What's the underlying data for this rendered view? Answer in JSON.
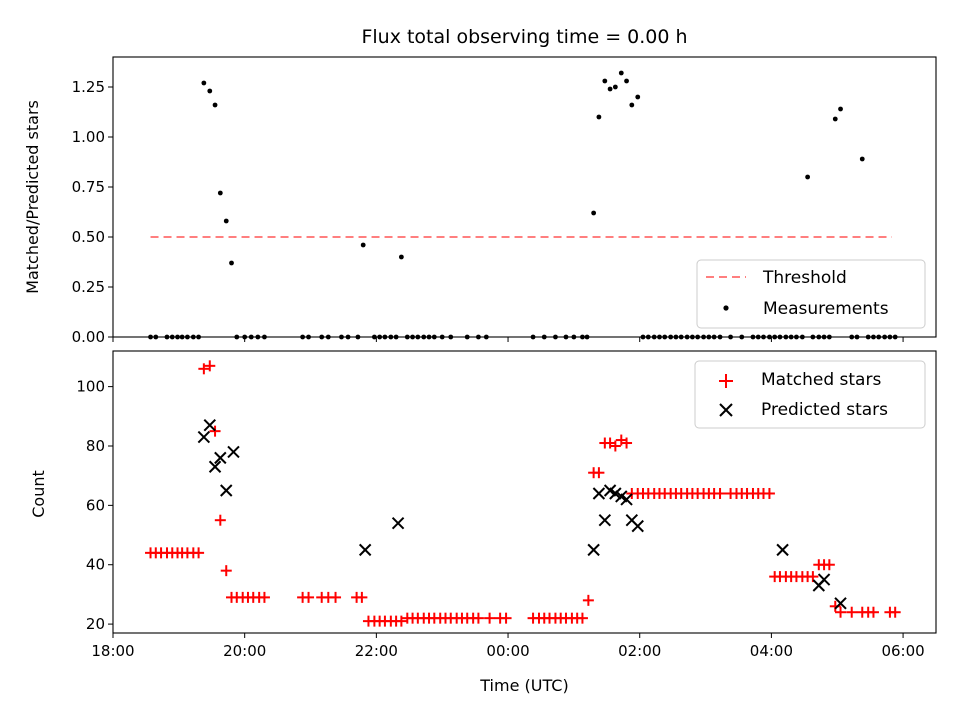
{
  "chart_data": [
    {
      "type": "scatter",
      "title": "Flux total observing time = 0.00 h",
      "ylabel": "Matched/Predicted stars",
      "xlabel": "",
      "x_unit": "hours since 18:00 UTC",
      "xlim": [
        0,
        12.5
      ],
      "ylim": [
        0,
        1.4
      ],
      "yticks": [
        0.0,
        0.25,
        0.5,
        0.75,
        1.0,
        1.25
      ],
      "ytick_labels": [
        "0.00",
        "0.25",
        "0.50",
        "0.75",
        "1.00",
        "1.25"
      ],
      "grid": false,
      "legend_placement": "lower-right",
      "series": [
        {
          "name": "Threshold",
          "style": "dashed-line",
          "color": "#ff7f7f",
          "x": [
            0.57,
            11.83
          ],
          "y": [
            0.5,
            0.5
          ]
        },
        {
          "name": "Measurements",
          "style": "dot",
          "color": "#000000",
          "x": [
            0.57,
            0.65,
            0.82,
            0.9,
            0.98,
            1.05,
            1.13,
            1.22,
            1.3,
            1.38,
            1.47,
            1.55,
            1.63,
            1.72,
            1.8,
            1.88,
            2.0,
            2.1,
            2.2,
            2.3,
            2.88,
            2.97,
            3.17,
            3.27,
            3.47,
            3.57,
            3.72,
            3.8,
            3.97,
            4.05,
            4.13,
            4.22,
            4.3,
            4.38,
            4.47,
            4.55,
            4.63,
            4.72,
            4.8,
            4.88,
            5.0,
            5.13,
            5.38,
            5.55,
            5.67,
            6.38,
            6.55,
            6.72,
            6.88,
            7.0,
            7.13,
            7.2,
            7.3,
            7.38,
            7.47,
            7.55,
            7.63,
            7.72,
            7.8,
            7.88,
            7.97,
            8.05,
            8.13,
            8.22,
            8.3,
            8.38,
            8.47,
            8.55,
            8.63,
            8.72,
            8.8,
            8.88,
            8.97,
            9.05,
            9.13,
            9.22,
            9.38,
            9.55,
            9.72,
            9.8,
            9.88,
            9.97,
            10.05,
            10.13,
            10.22,
            10.3,
            10.38,
            10.47,
            10.55,
            10.63,
            10.72,
            10.8,
            10.88,
            10.97,
            11.05,
            11.22,
            11.3,
            11.38,
            11.47,
            11.55,
            11.63,
            11.72,
            11.8,
            11.88
          ],
          "y": [
            0.0,
            0.0,
            0.0,
            0.0,
            0.0,
            0.0,
            0.0,
            0.0,
            0.0,
            1.27,
            1.23,
            1.16,
            0.72,
            0.58,
            0.37,
            0.0,
            0.0,
            0.0,
            0.0,
            0.0,
            0.0,
            0.0,
            0.0,
            0.0,
            0.0,
            0.0,
            0.0,
            0.46,
            0.0,
            0.0,
            0.0,
            0.0,
            0.0,
            0.4,
            0.0,
            0.0,
            0.0,
            0.0,
            0.0,
            0.0,
            0.0,
            0.0,
            0.0,
            0.0,
            0.0,
            0.0,
            0.0,
            0.0,
            0.0,
            0.0,
            0.0,
            0.0,
            0.62,
            1.1,
            1.28,
            1.24,
            1.25,
            1.32,
            1.28,
            1.16,
            1.2,
            0.0,
            0.0,
            0.0,
            0.0,
            0.0,
            0.0,
            0.0,
            0.0,
            0.0,
            0.0,
            0.0,
            0.0,
            0.0,
            0.0,
            0.0,
            0.0,
            0.0,
            0.0,
            0.0,
            0.0,
            0.0,
            0.0,
            0.0,
            0.0,
            0.0,
            0.0,
            0.0,
            0.8,
            0.0,
            0.0,
            0.0,
            0.0,
            1.09,
            1.14,
            0.0,
            0.0,
            0.89,
            0.0,
            0.0,
            0.0,
            0.0,
            0.0,
            0.0
          ]
        }
      ]
    },
    {
      "type": "scatter",
      "title": "",
      "ylabel": "Count",
      "xlabel": "Time (UTC)",
      "x_unit": "hours since 18:00 UTC",
      "xlim": [
        0,
        12.5
      ],
      "ylim": [
        17,
        112
      ],
      "xticks": [
        0,
        2,
        4,
        6,
        8,
        10,
        12
      ],
      "xtick_labels": [
        "18:00",
        "20:00",
        "22:00",
        "00:00",
        "02:00",
        "04:00",
        "06:00"
      ],
      "yticks": [
        20,
        40,
        60,
        80,
        100
      ],
      "ytick_labels": [
        "20",
        "40",
        "60",
        "80",
        "100"
      ],
      "grid": false,
      "legend_placement": "upper-right",
      "series": [
        {
          "name": "Matched stars",
          "marker": "plus",
          "color": "#ff0000",
          "x": [
            0.57,
            0.65,
            0.73,
            0.82,
            0.9,
            0.98,
            1.05,
            1.13,
            1.22,
            1.3,
            1.38,
            1.47,
            1.55,
            1.63,
            1.72,
            1.8,
            1.88,
            1.97,
            2.05,
            2.13,
            2.22,
            2.3,
            2.88,
            2.97,
            3.17,
            3.27,
            3.38,
            3.7,
            3.78,
            3.88,
            3.97,
            4.05,
            4.13,
            4.22,
            4.3,
            4.38,
            4.47,
            4.55,
            4.63,
            4.72,
            4.8,
            4.88,
            4.97,
            5.05,
            5.13,
            5.22,
            5.3,
            5.38,
            5.47,
            5.55,
            5.72,
            5.88,
            5.97,
            6.38,
            6.47,
            6.55,
            6.63,
            6.72,
            6.8,
            6.88,
            6.97,
            7.05,
            7.13,
            7.22,
            7.3,
            7.38,
            7.47,
            7.55,
            7.63,
            7.72,
            7.8,
            7.88,
            7.97,
            8.05,
            8.13,
            8.22,
            8.3,
            8.38,
            8.47,
            8.55,
            8.63,
            8.72,
            8.8,
            8.88,
            8.97,
            9.05,
            9.13,
            9.22,
            9.38,
            9.47,
            9.55,
            9.63,
            9.72,
            9.8,
            9.88,
            9.97,
            10.05,
            10.13,
            10.22,
            10.3,
            10.38,
            10.47,
            10.55,
            10.63,
            10.72,
            10.8,
            10.88,
            10.97,
            11.05,
            11.22,
            11.38,
            11.47,
            11.55,
            11.8,
            11.88
          ],
          "y": [
            44,
            44,
            44,
            44,
            44,
            44,
            44,
            44,
            44,
            44,
            106,
            107,
            85,
            55,
            38,
            29,
            29,
            29,
            29,
            29,
            29,
            29,
            29,
            29,
            29,
            29,
            29,
            29,
            29,
            21,
            21,
            21,
            21,
            21,
            21,
            21,
            22,
            22,
            22,
            22,
            22,
            22,
            22,
            22,
            22,
            22,
            22,
            22,
            22,
            22,
            22,
            22,
            22,
            22,
            22,
            22,
            22,
            22,
            22,
            22,
            22,
            22,
            22,
            28,
            71,
            71,
            81,
            81,
            80,
            82,
            81,
            64,
            64,
            64,
            64,
            64,
            64,
            64,
            64,
            64,
            64,
            64,
            64,
            64,
            64,
            64,
            64,
            64,
            64,
            64,
            64,
            64,
            64,
            64,
            64,
            64,
            36,
            36,
            36,
            36,
            36,
            36,
            36,
            36,
            40,
            40,
            40,
            26,
            24,
            24,
            24,
            24,
            24,
            24,
            24
          ],
          "x_sparse": [],
          "y_sparse": []
        },
        {
          "name": "Predicted stars",
          "marker": "x",
          "color": "#000000",
          "x": [
            1.38,
            1.47,
            1.55,
            1.63,
            1.72,
            1.83,
            3.83,
            4.33,
            7.3,
            7.38,
            7.47,
            7.55,
            7.63,
            7.72,
            7.8,
            7.88,
            7.97,
            10.17,
            10.72,
            10.8,
            11.05
          ],
          "y": [
            83,
            87,
            73,
            76,
            65,
            78,
            45,
            54,
            45,
            64,
            55,
            65,
            64,
            63,
            62,
            55,
            53,
            45,
            33,
            35,
            27
          ]
        }
      ]
    }
  ]
}
